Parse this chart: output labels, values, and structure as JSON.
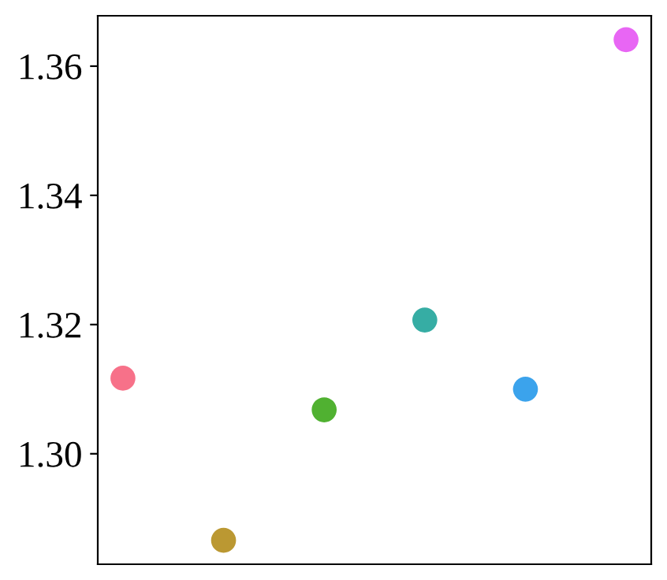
{
  "chart_data": {
    "type": "scatter",
    "categories": [
      null,
      null,
      null,
      null,
      null,
      null
    ],
    "values": [
      1.3117,
      1.2866,
      1.3068,
      1.3207,
      1.31,
      1.3641
    ],
    "colors": [
      "#f77189",
      "#bb9832",
      "#50b131",
      "#36ada4",
      "#3ba3ec",
      "#e866f4"
    ],
    "ylim": [
      1.2829,
      1.3678
    ],
    "yticks": [
      {
        "value": 1.3,
        "label": "1.30"
      },
      {
        "value": 1.32,
        "label": "1.32"
      },
      {
        "value": 1.34,
        "label": "1.34"
      },
      {
        "value": 1.36,
        "label": "1.36"
      }
    ],
    "tick_labels": "y",
    "grid": false,
    "marker": "circle"
  }
}
